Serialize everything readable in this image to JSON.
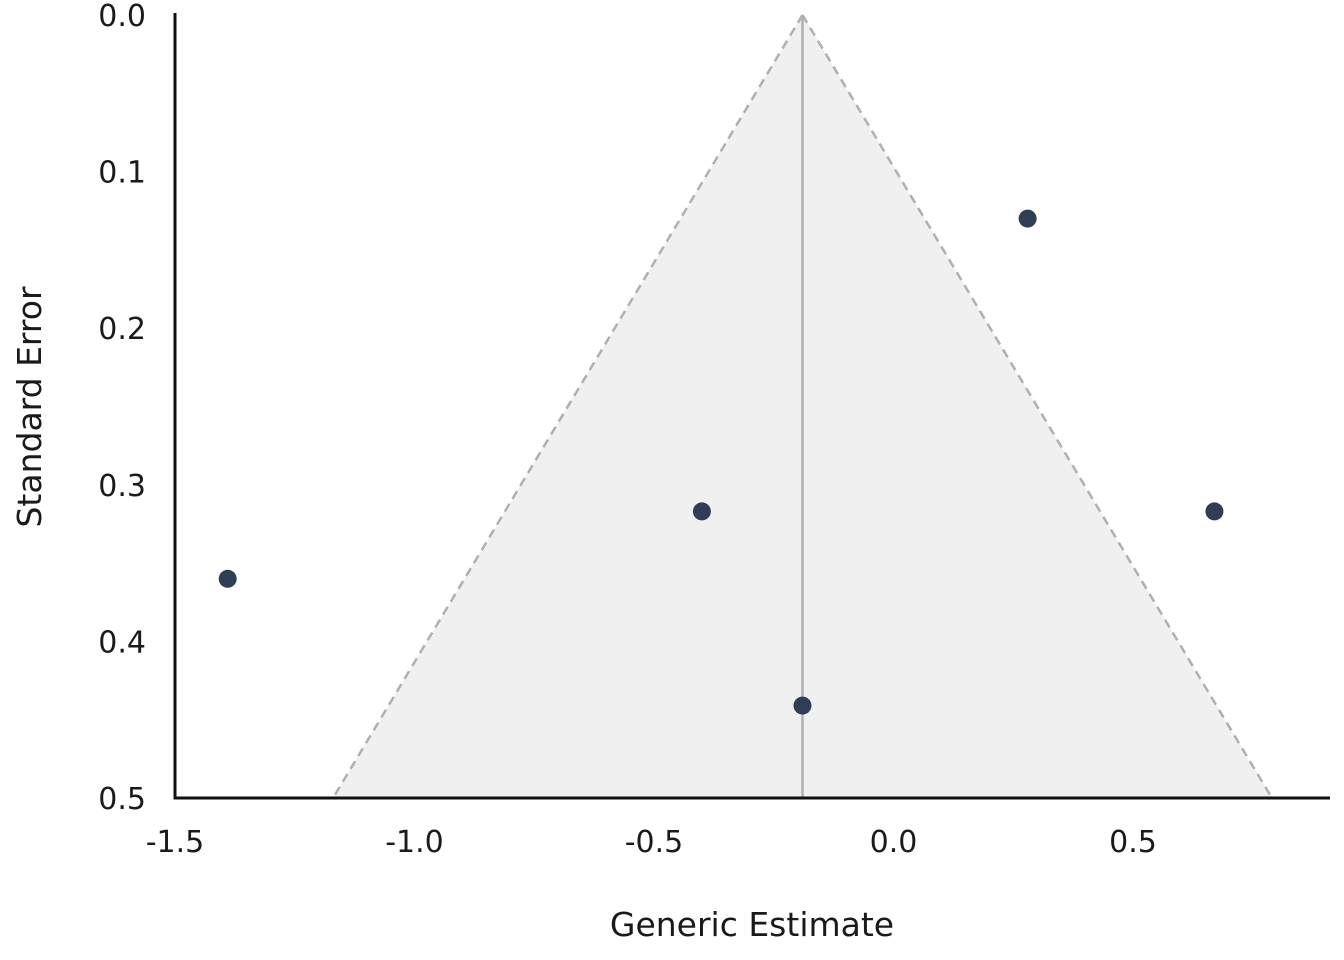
{
  "chart_data": {
    "type": "scatter",
    "subtype": "funnel-plot",
    "title": "",
    "xlabel": "Generic Estimate",
    "ylabel": "Standard Error",
    "xlim": [
      -1.5,
      0.85
    ],
    "ylim": [
      0.0,
      0.5
    ],
    "y_inverted": true,
    "x_ticks": [
      -1.5,
      -1.0,
      -0.5,
      0.0,
      0.5
    ],
    "x_tick_labels": [
      "-1.5",
      "-1.0",
      "-0.5",
      "0.0",
      "0.5"
    ],
    "y_ticks": [
      0.0,
      0.1,
      0.2,
      0.3,
      0.4,
      0.5
    ],
    "y_tick_labels": [
      "0.0",
      "0.1",
      "0.2",
      "0.3",
      "0.4",
      "0.5"
    ],
    "pooled_estimate": -0.19,
    "funnel_z": 1.96,
    "grid": false,
    "colors": {
      "point": "#2f3e55",
      "funnel_fill": "#f0f0f0",
      "funnel_edge": "#b0b0b0",
      "center_line": "#b0b0b0",
      "axis": "#111111"
    },
    "points": [
      {
        "x": -1.39,
        "y": 0.36
      },
      {
        "x": -0.4,
        "y": 0.317
      },
      {
        "x": 0.28,
        "y": 0.13
      },
      {
        "x": 0.67,
        "y": 0.317
      },
      {
        "x": -0.19,
        "y": 0.441
      }
    ]
  }
}
